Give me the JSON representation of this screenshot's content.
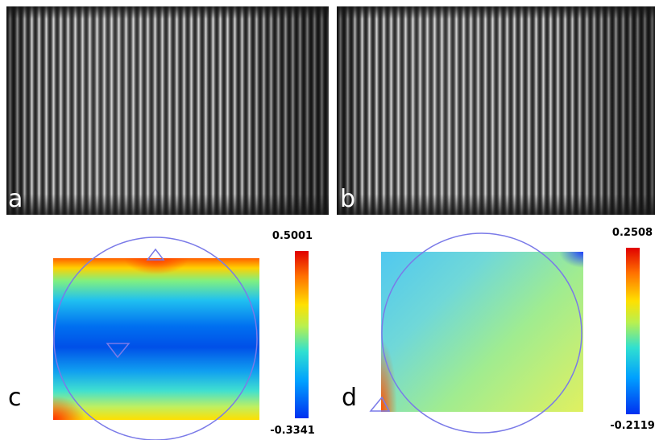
{
  "panels": [
    {
      "label": "a"
    },
    {
      "label": "b"
    },
    {
      "label": "c",
      "colorbar": {
        "max": "0.5001",
        "min": "-0.3341"
      }
    },
    {
      "label": "d",
      "colorbar": {
        "max": "0.2508",
        "min": "-0.2119"
      }
    }
  ]
}
